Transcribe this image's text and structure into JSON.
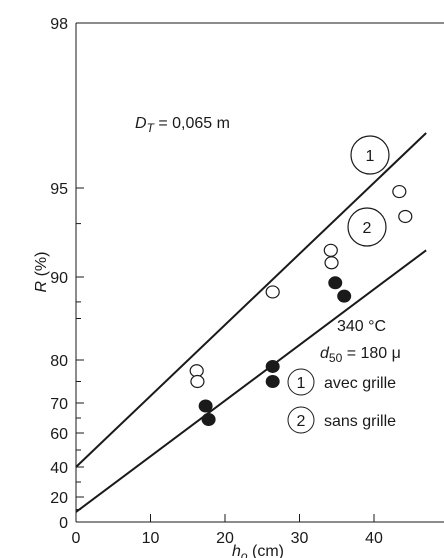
{
  "chart_data": {
    "type": "scatter",
    "title": "",
    "xlabel": "h",
    "xlabel_sub": "o",
    "xlabel_unit": " (cm)",
    "ylabel": "R (%)",
    "ylabel_main": "R",
    "ylabel_unit": " (%)",
    "xlim": [
      0,
      50
    ],
    "x_ticks": [
      0,
      10,
      20,
      30,
      40
    ],
    "y_ticks": [
      {
        "label": "0",
        "value": 0
      },
      {
        "label": "20",
        "value": 20
      },
      {
        "label": "40",
        "value": 40
      },
      {
        "label": "60",
        "value": 60
      },
      {
        "label": "70",
        "value": 70
      },
      {
        "label": "80",
        "value": 80
      },
      {
        "label": "90",
        "value": 90
      },
      {
        "label": "95",
        "value": 95
      },
      {
        "label": "98",
        "value": 98
      }
    ],
    "series": [
      {
        "name": "avec grille",
        "number": "1",
        "marker": "open-circle",
        "points": [
          [
            16.2,
            77.5
          ],
          [
            16.3,
            75.0
          ],
          [
            26.4,
            88.2
          ],
          [
            34.2,
            91.5
          ],
          [
            34.3,
            90.8
          ],
          [
            43.4,
            94.8
          ],
          [
            44.2,
            93.4
          ]
        ],
        "fit_line": [
          [
            0,
            40
          ],
          [
            47,
            96
          ]
        ]
      },
      {
        "name": "sans grille",
        "number": "2",
        "marker": "filled-circle",
        "points": [
          [
            17.4,
            69.0
          ],
          [
            17.8,
            64.5
          ],
          [
            26.4,
            78.5
          ],
          [
            26.4,
            75.0
          ],
          [
            34.8,
            89.3
          ],
          [
            36.0,
            87.7
          ]
        ],
        "fit_line": [
          [
            0,
            8
          ],
          [
            47,
            91.5
          ]
        ]
      }
    ],
    "annotations": {
      "diameter_label": "D",
      "diameter_sub": "T",
      "diameter_value": " = 0,065 m",
      "temperature": "340 °C",
      "particle_label": "d",
      "particle_sub": "50",
      "particle_value": " = 180 μ"
    }
  }
}
